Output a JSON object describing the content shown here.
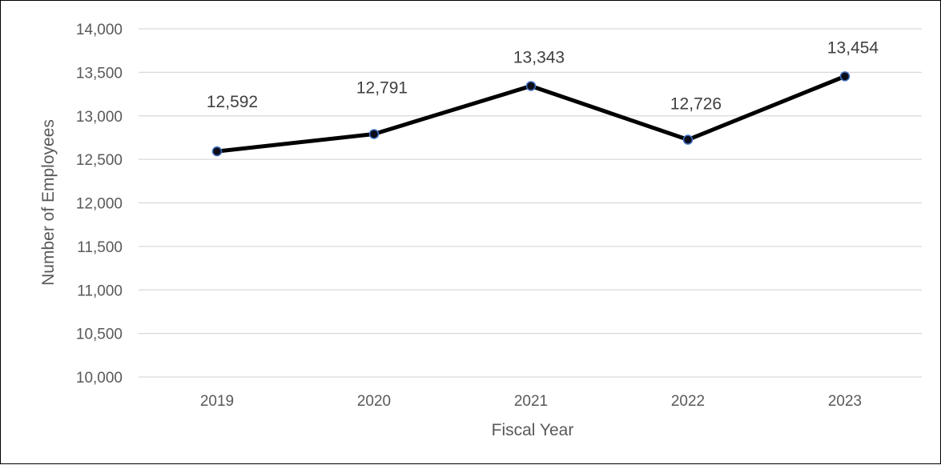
{
  "chart_data": {
    "type": "line",
    "title": "",
    "xlabel": "Fiscal Year",
    "ylabel": "Number  of Employees",
    "categories": [
      "2019",
      "2020",
      "2021",
      "2022",
      "2023"
    ],
    "series": [
      {
        "values": [
          12592,
          12791,
          13343,
          12726,
          13454
        ],
        "data_labels": [
          "12,592",
          "12,791",
          "13,343",
          "12,726",
          "13,454"
        ]
      }
    ],
    "ylim": [
      10000,
      14000
    ],
    "yticks": [
      10000,
      10500,
      11000,
      11500,
      12000,
      12500,
      13000,
      13500,
      14000
    ],
    "ytick_labels": [
      "10,000",
      "10,500",
      "11,000",
      "11,500",
      "12,000",
      "12,500",
      "13,000",
      "13,500",
      "14,000"
    ],
    "grid": true,
    "legend": "none",
    "colors": {
      "line": "#000000",
      "marker_fill": "#0d0d1a",
      "marker_edge": "#4472c4",
      "gridline": "#d9d9d9",
      "text": "#595959"
    }
  }
}
